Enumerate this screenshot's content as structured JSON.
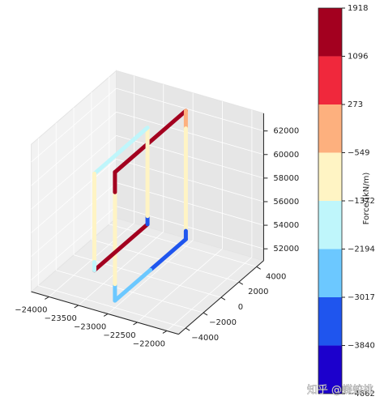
{
  "chart_data": {
    "type": "line3d",
    "xlim": [
      -24300,
      -21800
    ],
    "ylim": [
      -4800,
      4800
    ],
    "zlim": [
      51000,
      63500
    ],
    "xticks": [
      {
        "value": -24000,
        "label": "−24000"
      },
      {
        "value": -23500,
        "label": "−23500"
      },
      {
        "value": -23000,
        "label": "−23000"
      },
      {
        "value": -22500,
        "label": "−22500"
      },
      {
        "value": -22000,
        "label": "−22000"
      }
    ],
    "yticks": [
      {
        "value": -4000,
        "label": "−4000"
      },
      {
        "value": -2000,
        "label": "−2000"
      },
      0,
      2000,
      4000
    ],
    "zticks": [
      52000,
      54000,
      56000,
      58000,
      60000,
      62000
    ],
    "grid": true,
    "series": [
      {
        "x": [
          -23000,
          -23000,
          -23000,
          -23000,
          -23000,
          -23000,
          -23000,
          -23000,
          -23000,
          -23000
        ],
        "y": [
          -4000,
          -4000,
          -4000,
          -4000,
          4000,
          4000,
          4000,
          4000,
          0,
          -4000
        ],
        "z": [
          51600,
          53000,
          60800,
          62500,
          62500,
          61000,
          52300,
          51600,
          51600,
          51600
        ],
        "values": [
          -2400,
          -1100,
          1500,
          1800,
          100,
          -1000,
          -3300,
          -3700,
          -3000,
          -2400
        ]
      },
      {
        "x": [
          -23500,
          -23500,
          -23500,
          -23500,
          -23500,
          -23500,
          -23500
        ],
        "y": [
          -3000,
          3000,
          3000,
          3000,
          -3000,
          -3000,
          -3000
        ],
        "z": [
          52800,
          52800,
          53500,
          61000,
          61000,
          53500,
          52800
        ],
        "values": [
          1700,
          -3200,
          -900,
          -1700,
          -1200,
          -1800,
          -1800
        ]
      }
    ],
    "colorbar": {
      "label": "Force/(kN/m)",
      "ticks": [
        {
          "value": -4662,
          "label": "−4662"
        },
        {
          "value": -3840,
          "label": "−3840"
        },
        {
          "value": -3017,
          "label": "−3017"
        },
        {
          "value": -2194,
          "label": "−2194"
        },
        {
          "value": -1372,
          "label": "−1372"
        },
        {
          "value": -549,
          "label": "−549"
        },
        273,
        1096,
        1918
      ],
      "colors": [
        "#1c00cc",
        "#1f55ee",
        "#6cc8ff",
        "#bff6fb",
        "#fff4c4",
        "#fdb07e",
        "#f0283c",
        "#a3001f"
      ]
    },
    "watermark": "知乎 @蝶蛟桃"
  }
}
